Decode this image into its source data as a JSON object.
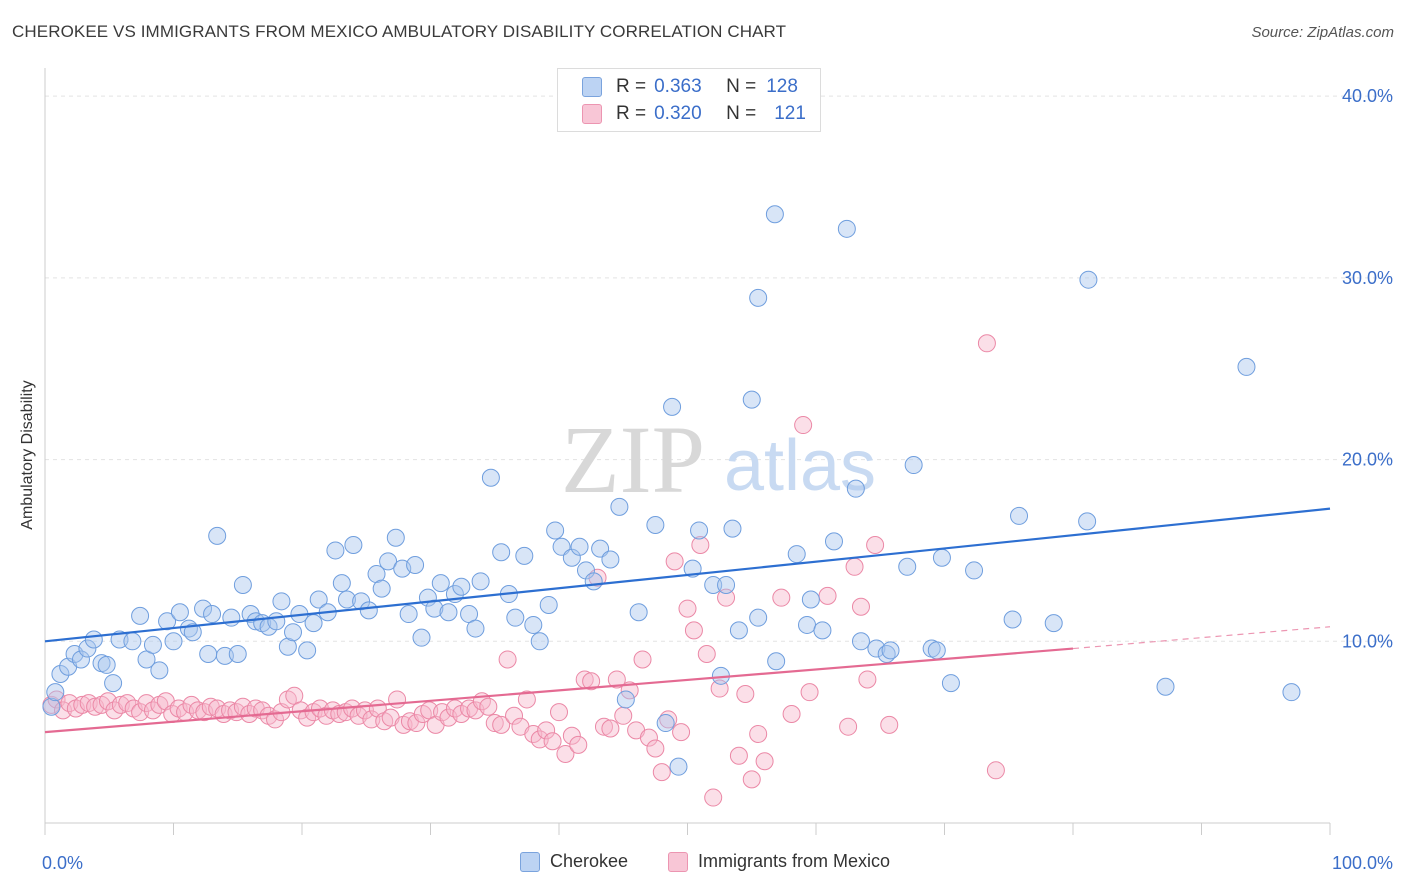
{
  "title": "CHEROKEE VS IMMIGRANTS FROM MEXICO AMBULATORY DISABILITY CORRELATION CHART",
  "source": "Source: ZipAtlas.com",
  "watermark": {
    "zip": "ZIP",
    "atlas": "atlas"
  },
  "legend": {
    "rows": [
      {
        "r_label": "R =",
        "r_value": "0.363",
        "n_label": "N =",
        "n_value": "128"
      },
      {
        "r_label": "R =",
        "r_value": "0.320",
        "n_label": "N =",
        "n_value": "121"
      }
    ]
  },
  "colors": {
    "blue_fill": "#a9c6ee",
    "blue_stroke": "#6f9ede",
    "blue_line": "#2d6fd1",
    "pink_fill": "#f6b9cc",
    "pink_stroke": "#eb88a6",
    "pink_line": "#e46a92",
    "accent_text": "#3b6ec9"
  },
  "chart_data": {
    "type": "scatter",
    "title": "CHEROKEE VS IMMIGRANTS FROM MEXICO AMBULATORY DISABILITY CORRELATION CHART",
    "xlabel": "",
    "ylabel": "Ambulatory Disability",
    "xlim": [
      0,
      100
    ],
    "ylim": [
      0,
      41
    ],
    "x_tick_labels": [
      "0.0%",
      "100.0%"
    ],
    "y_ticks": [
      10,
      20,
      30,
      40
    ],
    "y_tick_labels": [
      "10.0%",
      "20.0%",
      "30.0%",
      "40.0%"
    ],
    "grid": true,
    "legend_position": "top-center",
    "series": [
      {
        "name": "Cherokee",
        "R": 0.363,
        "N": 128,
        "trend": {
          "x": [
            0,
            100
          ],
          "y": [
            10.0,
            17.3
          ]
        },
        "points": [
          [
            0.5,
            6.4
          ],
          [
            0.8,
            7.2
          ],
          [
            1.2,
            8.2
          ],
          [
            1.8,
            8.6
          ],
          [
            2.3,
            9.3
          ],
          [
            2.8,
            9.0
          ],
          [
            3.3,
            9.6
          ],
          [
            3.8,
            10.1
          ],
          [
            4.4,
            8.8
          ],
          [
            4.8,
            8.7
          ],
          [
            5.3,
            7.7
          ],
          [
            5.8,
            10.1
          ],
          [
            6.8,
            10.0
          ],
          [
            7.4,
            11.4
          ],
          [
            7.9,
            9.0
          ],
          [
            8.4,
            9.8
          ],
          [
            8.9,
            8.4
          ],
          [
            9.5,
            11.1
          ],
          [
            10.0,
            10.0
          ],
          [
            10.5,
            11.6
          ],
          [
            11.2,
            10.7
          ],
          [
            11.5,
            10.5
          ],
          [
            12.3,
            11.8
          ],
          [
            12.7,
            9.3
          ],
          [
            13.0,
            11.5
          ],
          [
            13.4,
            15.8
          ],
          [
            14.0,
            9.2
          ],
          [
            14.5,
            11.3
          ],
          [
            15.0,
            9.3
          ],
          [
            15.4,
            13.1
          ],
          [
            16.0,
            11.5
          ],
          [
            16.4,
            11.1
          ],
          [
            16.9,
            11.0
          ],
          [
            17.4,
            10.8
          ],
          [
            18.0,
            11.1
          ],
          [
            18.4,
            12.2
          ],
          [
            18.9,
            9.7
          ],
          [
            19.3,
            10.5
          ],
          [
            19.8,
            11.5
          ],
          [
            20.4,
            9.5
          ],
          [
            20.9,
            11.0
          ],
          [
            21.3,
            12.3
          ],
          [
            22.0,
            11.6
          ],
          [
            22.6,
            15.0
          ],
          [
            23.1,
            13.2
          ],
          [
            23.5,
            12.3
          ],
          [
            24.0,
            15.3
          ],
          [
            24.6,
            12.2
          ],
          [
            25.2,
            11.7
          ],
          [
            25.8,
            13.7
          ],
          [
            26.2,
            12.9
          ],
          [
            26.7,
            14.4
          ],
          [
            27.3,
            15.7
          ],
          [
            27.8,
            14.0
          ],
          [
            28.3,
            11.5
          ],
          [
            28.8,
            14.2
          ],
          [
            29.3,
            10.2
          ],
          [
            29.8,
            12.4
          ],
          [
            30.3,
            11.8
          ],
          [
            30.8,
            13.2
          ],
          [
            31.4,
            11.6
          ],
          [
            31.9,
            12.6
          ],
          [
            32.4,
            13.0
          ],
          [
            33.0,
            11.5
          ],
          [
            33.5,
            10.7
          ],
          [
            33.9,
            13.3
          ],
          [
            34.7,
            19.0
          ],
          [
            35.5,
            14.9
          ],
          [
            36.1,
            12.6
          ],
          [
            36.6,
            11.3
          ],
          [
            37.3,
            14.7
          ],
          [
            38.0,
            10.9
          ],
          [
            38.5,
            10.0
          ],
          [
            39.2,
            12.0
          ],
          [
            39.7,
            16.1
          ],
          [
            40.2,
            15.2
          ],
          [
            41.0,
            14.6
          ],
          [
            41.6,
            15.2
          ],
          [
            42.1,
            13.9
          ],
          [
            42.7,
            13.3
          ],
          [
            43.2,
            15.1
          ],
          [
            44.0,
            14.5
          ],
          [
            44.7,
            17.4
          ],
          [
            45.2,
            6.8
          ],
          [
            46.2,
            11.6
          ],
          [
            47.5,
            16.4
          ],
          [
            48.3,
            5.5
          ],
          [
            48.8,
            22.9
          ],
          [
            49.3,
            3.1
          ],
          [
            50.4,
            14.0
          ],
          [
            50.9,
            16.1
          ],
          [
            52.0,
            13.1
          ],
          [
            52.6,
            8.1
          ],
          [
            53.0,
            13.1
          ],
          [
            53.5,
            16.2
          ],
          [
            54.0,
            10.6
          ],
          [
            55.0,
            23.3
          ],
          [
            55.5,
            11.3
          ],
          [
            55.5,
            28.9
          ],
          [
            56.8,
            33.5
          ],
          [
            56.9,
            8.9
          ],
          [
            58.5,
            14.8
          ],
          [
            59.3,
            10.9
          ],
          [
            59.6,
            12.3
          ],
          [
            60.5,
            10.6
          ],
          [
            61.4,
            15.5
          ],
          [
            62.4,
            32.7
          ],
          [
            63.1,
            18.4
          ],
          [
            63.5,
            10.0
          ],
          [
            64.7,
            9.6
          ],
          [
            65.5,
            9.3
          ],
          [
            65.8,
            9.5
          ],
          [
            67.1,
            14.1
          ],
          [
            67.6,
            19.7
          ],
          [
            69.0,
            9.6
          ],
          [
            69.4,
            9.5
          ],
          [
            69.8,
            14.6
          ],
          [
            70.5,
            7.7
          ],
          [
            72.3,
            13.9
          ],
          [
            75.3,
            11.2
          ],
          [
            75.8,
            16.9
          ],
          [
            78.5,
            11.0
          ],
          [
            81.1,
            16.6
          ],
          [
            81.2,
            29.9
          ],
          [
            87.2,
            7.5
          ],
          [
            93.5,
            25.1
          ],
          [
            97.0,
            7.2
          ]
        ]
      },
      {
        "name": "Immigrants from Mexico",
        "R": 0.32,
        "N": 121,
        "trend": {
          "x": [
            0,
            80
          ],
          "y": [
            5.0,
            9.6
          ]
        },
        "trend_dashed": {
          "x": [
            80,
            100
          ],
          "y": [
            9.6,
            10.8
          ]
        },
        "points": [
          [
            0.5,
            6.5
          ],
          [
            0.9,
            6.8
          ],
          [
            1.4,
            6.2
          ],
          [
            1.9,
            6.6
          ],
          [
            2.4,
            6.3
          ],
          [
            2.9,
            6.5
          ],
          [
            3.4,
            6.6
          ],
          [
            3.9,
            6.4
          ],
          [
            4.4,
            6.5
          ],
          [
            4.9,
            6.7
          ],
          [
            5.4,
            6.2
          ],
          [
            5.9,
            6.5
          ],
          [
            6.4,
            6.6
          ],
          [
            6.9,
            6.3
          ],
          [
            7.4,
            6.1
          ],
          [
            7.9,
            6.6
          ],
          [
            8.4,
            6.2
          ],
          [
            8.9,
            6.5
          ],
          [
            9.4,
            6.7
          ],
          [
            9.9,
            6.0
          ],
          [
            10.4,
            6.3
          ],
          [
            10.9,
            6.1
          ],
          [
            11.4,
            6.5
          ],
          [
            11.9,
            6.2
          ],
          [
            12.4,
            6.1
          ],
          [
            12.9,
            6.4
          ],
          [
            13.4,
            6.3
          ],
          [
            13.9,
            6.0
          ],
          [
            14.4,
            6.2
          ],
          [
            14.9,
            6.1
          ],
          [
            15.4,
            6.4
          ],
          [
            15.9,
            6.0
          ],
          [
            16.4,
            6.3
          ],
          [
            16.9,
            6.2
          ],
          [
            17.4,
            5.9
          ],
          [
            17.9,
            5.7
          ],
          [
            18.4,
            6.1
          ],
          [
            18.9,
            6.8
          ],
          [
            19.4,
            7.0
          ],
          [
            19.9,
            6.2
          ],
          [
            20.4,
            5.8
          ],
          [
            20.9,
            6.1
          ],
          [
            21.4,
            6.3
          ],
          [
            21.9,
            5.9
          ],
          [
            22.4,
            6.2
          ],
          [
            22.9,
            6.0
          ],
          [
            23.4,
            6.1
          ],
          [
            23.9,
            6.3
          ],
          [
            24.4,
            5.9
          ],
          [
            24.9,
            6.2
          ],
          [
            25.4,
            5.7
          ],
          [
            25.9,
            6.3
          ],
          [
            26.4,
            5.6
          ],
          [
            26.9,
            5.8
          ],
          [
            27.4,
            6.8
          ],
          [
            27.9,
            5.4
          ],
          [
            28.4,
            5.6
          ],
          [
            28.9,
            5.5
          ],
          [
            29.4,
            6.0
          ],
          [
            29.9,
            6.2
          ],
          [
            30.4,
            5.4
          ],
          [
            30.9,
            6.1
          ],
          [
            31.4,
            5.8
          ],
          [
            31.9,
            6.3
          ],
          [
            32.4,
            6.0
          ],
          [
            33.0,
            6.3
          ],
          [
            33.5,
            6.2
          ],
          [
            34.0,
            6.7
          ],
          [
            34.5,
            6.4
          ],
          [
            35.0,
            5.5
          ],
          [
            35.5,
            5.4
          ],
          [
            36.0,
            9.0
          ],
          [
            36.5,
            5.9
          ],
          [
            37.0,
            5.3
          ],
          [
            37.5,
            6.8
          ],
          [
            38.0,
            4.9
          ],
          [
            38.5,
            4.6
          ],
          [
            39.0,
            5.1
          ],
          [
            39.5,
            4.5
          ],
          [
            40.0,
            6.1
          ],
          [
            40.5,
            3.8
          ],
          [
            41.0,
            4.8
          ],
          [
            41.5,
            4.3
          ],
          [
            42.0,
            7.9
          ],
          [
            42.5,
            7.8
          ],
          [
            43.0,
            13.5
          ],
          [
            43.5,
            5.3
          ],
          [
            44.0,
            5.2
          ],
          [
            44.5,
            7.9
          ],
          [
            45.0,
            5.9
          ],
          [
            45.5,
            7.3
          ],
          [
            46.0,
            5.1
          ],
          [
            46.5,
            9.0
          ],
          [
            47.0,
            4.7
          ],
          [
            47.5,
            4.1
          ],
          [
            48.0,
            2.8
          ],
          [
            48.5,
            5.7
          ],
          [
            49.0,
            14.4
          ],
          [
            49.5,
            5.0
          ],
          [
            50.0,
            11.8
          ],
          [
            50.5,
            10.6
          ],
          [
            51.0,
            15.3
          ],
          [
            51.5,
            9.3
          ],
          [
            52.0,
            1.4
          ],
          [
            52.5,
            7.4
          ],
          [
            53.0,
            12.4
          ],
          [
            54.0,
            3.7
          ],
          [
            54.5,
            7.1
          ],
          [
            55.0,
            2.4
          ],
          [
            55.5,
            4.9
          ],
          [
            56.0,
            3.4
          ],
          [
            57.3,
            12.4
          ],
          [
            58.1,
            6.0
          ],
          [
            59.0,
            21.9
          ],
          [
            59.5,
            7.2
          ],
          [
            60.9,
            12.5
          ],
          [
            62.5,
            5.3
          ],
          [
            63.0,
            14.1
          ],
          [
            63.5,
            11.9
          ],
          [
            64.0,
            7.9
          ],
          [
            64.6,
            15.3
          ],
          [
            65.7,
            5.4
          ],
          [
            73.3,
            26.4
          ],
          [
            74.0,
            2.9
          ]
        ]
      }
    ]
  },
  "bottom_legend": {
    "blue_label": "Cherokee",
    "pink_label": "Immigrants from Mexico"
  }
}
